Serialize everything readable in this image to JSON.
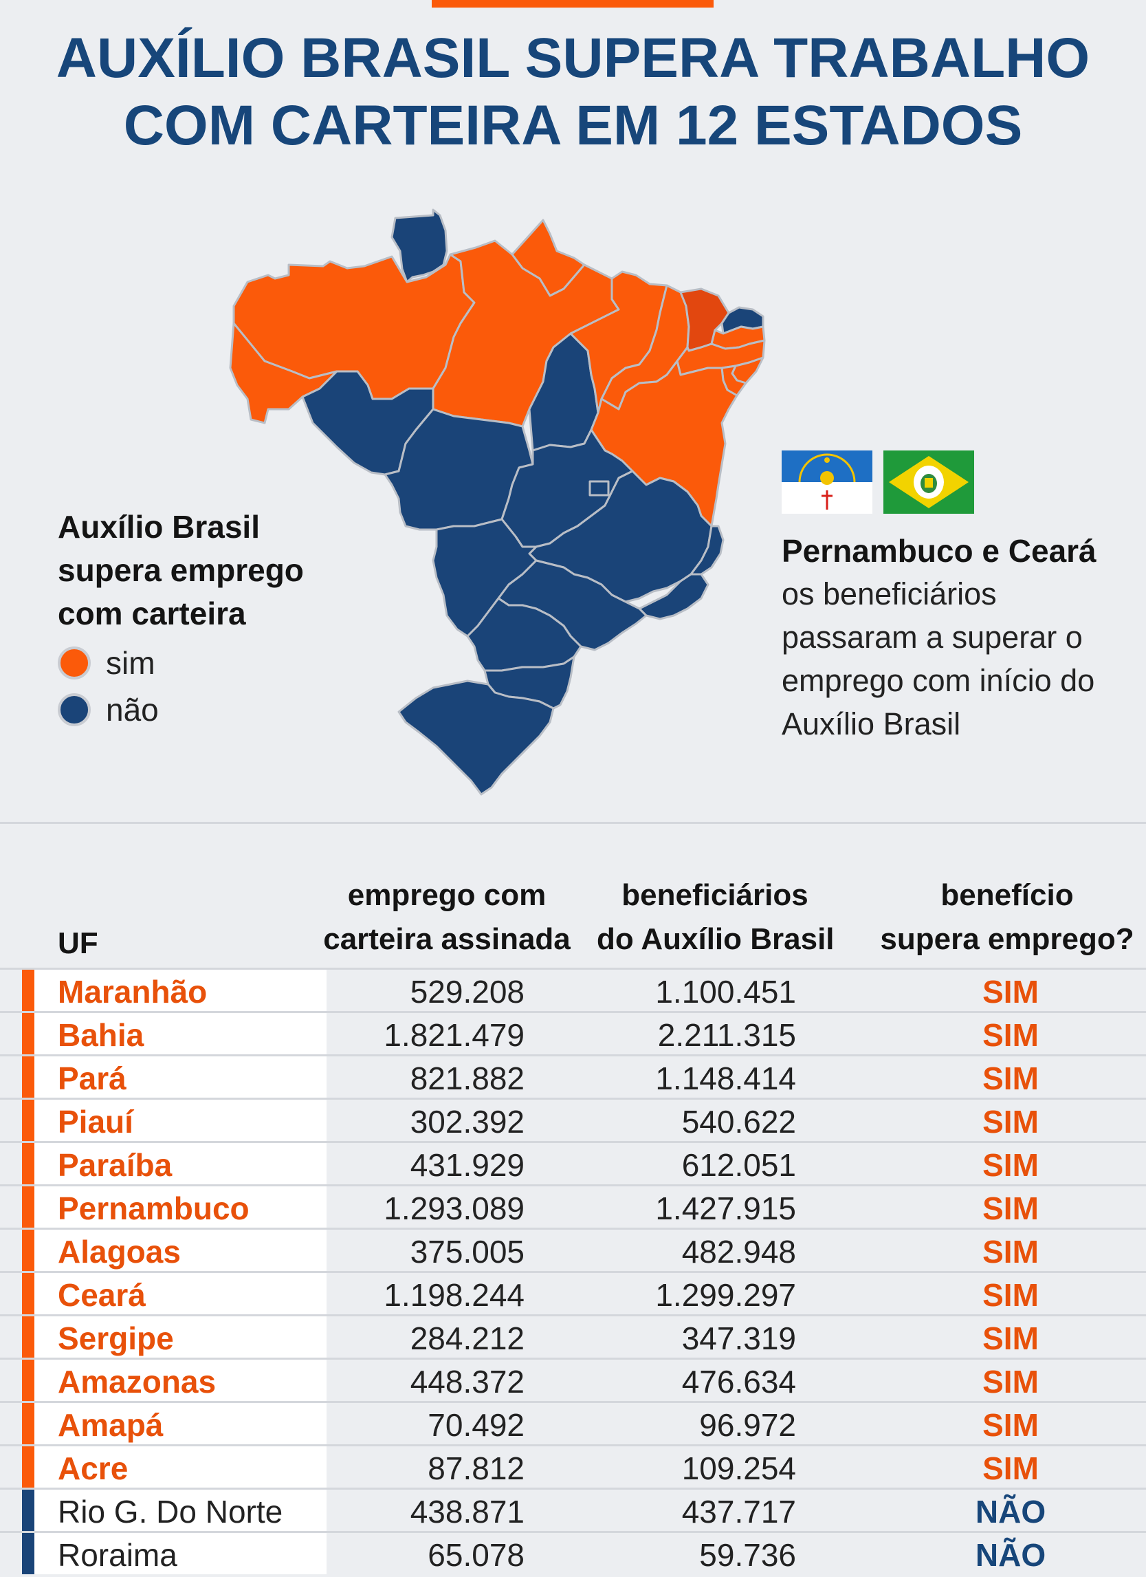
{
  "title": {
    "line1": "AUXÍLIO BRASIL SUPERA TRABALHO",
    "line2": "COM CARTEIRA EM 12 ESTADOS"
  },
  "colors": {
    "accent": "#fb5a0a",
    "sim": "#fb5a0a",
    "nao": "#1a4478",
    "highlight": "#e2470f",
    "title": "#17467a",
    "background": "#eceef1"
  },
  "legend": {
    "title": "Auxílio Brasil supera emprego com carteira",
    "items": [
      {
        "label": "sim",
        "color": "#fb5a0a"
      },
      {
        "label": "não",
        "color": "#1a4478"
      }
    ]
  },
  "note": {
    "flags": [
      "pernambuco-flag-icon",
      "ceara-flag-icon"
    ],
    "title": "Pernambuco e Ceará",
    "body": "os beneficiários passaram a superar o emprego com início do Auxílio Brasil"
  },
  "map": {
    "states": [
      {
        "name": "Roraima",
        "status": "não"
      },
      {
        "name": "Amapá",
        "status": "sim"
      },
      {
        "name": "Amazonas",
        "status": "sim"
      },
      {
        "name": "Pará",
        "status": "sim"
      },
      {
        "name": "Acre",
        "status": "sim"
      },
      {
        "name": "Rondônia",
        "status": "não"
      },
      {
        "name": "Mato Grosso",
        "status": "não"
      },
      {
        "name": "Tocantins",
        "status": "não"
      },
      {
        "name": "Maranhão",
        "status": "sim"
      },
      {
        "name": "Piauí",
        "status": "sim"
      },
      {
        "name": "Ceará",
        "status": "sim"
      },
      {
        "name": "Rio Grande do Norte",
        "status": "não"
      },
      {
        "name": "Paraíba",
        "status": "sim"
      },
      {
        "name": "Pernambuco",
        "status": "sim"
      },
      {
        "name": "Alagoas",
        "status": "sim"
      },
      {
        "name": "Sergipe",
        "status": "sim"
      },
      {
        "name": "Bahia",
        "status": "sim"
      },
      {
        "name": "Goiás",
        "status": "não"
      },
      {
        "name": "Distrito Federal",
        "status": "não"
      },
      {
        "name": "Minas Gerais",
        "status": "não"
      },
      {
        "name": "Mato Grosso do Sul",
        "status": "não"
      },
      {
        "name": "Espírito Santo",
        "status": "não"
      },
      {
        "name": "Rio de Janeiro",
        "status": "não"
      },
      {
        "name": "São Paulo",
        "status": "não"
      },
      {
        "name": "Paraná",
        "status": "não"
      },
      {
        "name": "Santa Catarina",
        "status": "não"
      },
      {
        "name": "Rio Grande do Sul",
        "status": "não"
      }
    ]
  },
  "table": {
    "headers": {
      "uf": "UF",
      "emprego_line1": "emprego com",
      "emprego_line2": "carteira assinada",
      "beneficiarios_line1": "beneficiários",
      "beneficiarios_line2": "do Auxílio Brasil",
      "supera_line1": "benefício",
      "supera_line2": "supera emprego?"
    },
    "rows": [
      {
        "uf": "Maranhão",
        "emprego": "529.208",
        "beneficiarios": "1.100.451",
        "supera": "SIM"
      },
      {
        "uf": "Bahia",
        "emprego": "1.821.479",
        "beneficiarios": "2.211.315",
        "supera": "SIM"
      },
      {
        "uf": "Pará",
        "emprego": "821.882",
        "beneficiarios": "1.148.414",
        "supera": "SIM"
      },
      {
        "uf": "Piauí",
        "emprego": "302.392",
        "beneficiarios": "540.622",
        "supera": "SIM"
      },
      {
        "uf": "Paraíba",
        "emprego": "431.929",
        "beneficiarios": "612.051",
        "supera": "SIM"
      },
      {
        "uf": "Pernambuco",
        "emprego": "1.293.089",
        "beneficiarios": "1.427.915",
        "supera": "SIM"
      },
      {
        "uf": "Alagoas",
        "emprego": "375.005",
        "beneficiarios": "482.948",
        "supera": "SIM"
      },
      {
        "uf": "Ceará",
        "emprego": "1.198.244",
        "beneficiarios": "1.299.297",
        "supera": "SIM"
      },
      {
        "uf": "Sergipe",
        "emprego": "284.212",
        "beneficiarios": "347.319",
        "supera": "SIM"
      },
      {
        "uf": "Amazonas",
        "emprego": "448.372",
        "beneficiarios": "476.634",
        "supera": "SIM"
      },
      {
        "uf": "Amapá",
        "emprego": "70.492",
        "beneficiarios": "96.972",
        "supera": "SIM"
      },
      {
        "uf": "Acre",
        "emprego": "87.812",
        "beneficiarios": "109.254",
        "supera": "SIM"
      },
      {
        "uf": "Rio G. Do Norte",
        "emprego": "438.871",
        "beneficiarios": "437.717",
        "supera": "NÃO"
      },
      {
        "uf": "Roraima",
        "emprego": "65.078",
        "beneficiarios": "59.736",
        "supera": "NÃO"
      }
    ]
  }
}
